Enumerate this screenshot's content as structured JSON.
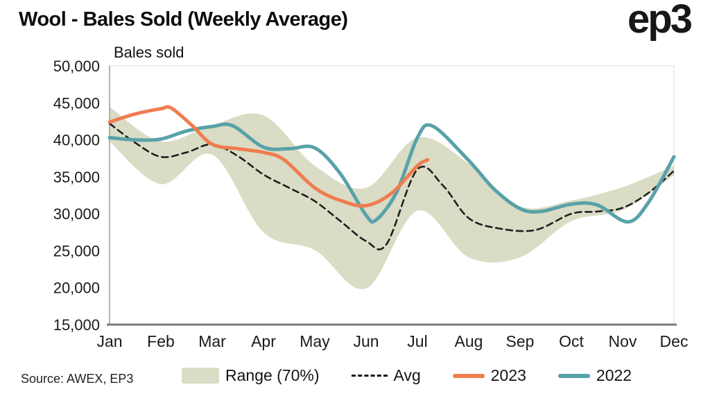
{
  "title": "Wool - Bales Sold (Weekly Average)",
  "logo": "ep3",
  "source": "Source: AWEX, EP3",
  "chart_data": {
    "type": "line",
    "title": "Wool - Bales Sold (Weekly Average)",
    "axis_label": "Bales sold",
    "ylim": [
      15000,
      50000
    ],
    "ytick_step": 5000,
    "categories": [
      "Jan",
      "Feb",
      "Mar",
      "Apr",
      "May",
      "Jun",
      "Jul",
      "Aug",
      "Sep",
      "Oct",
      "Nov",
      "Dec"
    ],
    "band": {
      "name": "Range (70%)",
      "color": "#dadcc5",
      "x": [
        0,
        1,
        2,
        3,
        4,
        5,
        6,
        7,
        8,
        9,
        10,
        11
      ],
      "upper": [
        44500,
        39800,
        42000,
        43300,
        36500,
        33500,
        40300,
        36800,
        31000,
        31800,
        33600,
        36500
      ],
      "lower": [
        39800,
        34000,
        38000,
        27500,
        25100,
        19900,
        30400,
        24100,
        24100,
        29000,
        30500,
        35200
      ]
    },
    "series": [
      {
        "name": "Avg",
        "color": "#1f1f1f",
        "style": "dashed",
        "x": [
          0,
          0.5,
          1,
          1.5,
          2,
          2.5,
          3,
          3.5,
          4,
          4.5,
          5,
          5.4,
          6,
          6.5,
          7,
          7.6,
          8.3,
          9,
          9.5,
          10,
          10.5,
          11
        ],
        "values": [
          42200,
          39600,
          37700,
          38300,
          39400,
          37800,
          35300,
          33500,
          31700,
          29000,
          26300,
          25900,
          36000,
          33800,
          29400,
          28000,
          27800,
          30000,
          30300,
          30800,
          32800,
          35800
        ]
      },
      {
        "name": "2022",
        "color": "#58a2a9",
        "style": "solid",
        "x": [
          0,
          0.5,
          1,
          1.5,
          2,
          2.4,
          3,
          3.5,
          4,
          4.5,
          5,
          5.2,
          5.6,
          6,
          6.3,
          7,
          7.5,
          8,
          8.4,
          9,
          9.5,
          10.1,
          10.5,
          11
        ],
        "values": [
          40300,
          40000,
          40100,
          41200,
          41800,
          41900,
          39000,
          38800,
          38900,
          35400,
          29800,
          29200,
          33000,
          40300,
          41850,
          37200,
          33300,
          30700,
          30300,
          31300,
          31200,
          28900,
          31500,
          37700
        ]
      },
      {
        "name": "2023",
        "color": "#ef7d4f",
        "style": "solid",
        "x": [
          0,
          0.5,
          1,
          1.2,
          1.6,
          2,
          2.5,
          3,
          3.4,
          4,
          4.5,
          5,
          5.5,
          6,
          6.2
        ],
        "values": [
          42400,
          43500,
          44200,
          44300,
          42000,
          39400,
          38800,
          38300,
          37300,
          33500,
          31800,
          31100,
          32800,
          36500,
          37300
        ]
      }
    ],
    "legend": [
      {
        "label": "Range (70%)",
        "swatch": "band",
        "color": "#dadcc5"
      },
      {
        "label": "Avg",
        "swatch": "dashed",
        "color": "#111111"
      },
      {
        "label": "2023",
        "swatch": "line",
        "color": "#ef7d4f"
      },
      {
        "label": "2022",
        "swatch": "line",
        "color": "#58a2a9"
      }
    ],
    "legend_position": "bottom",
    "grid": false
  }
}
